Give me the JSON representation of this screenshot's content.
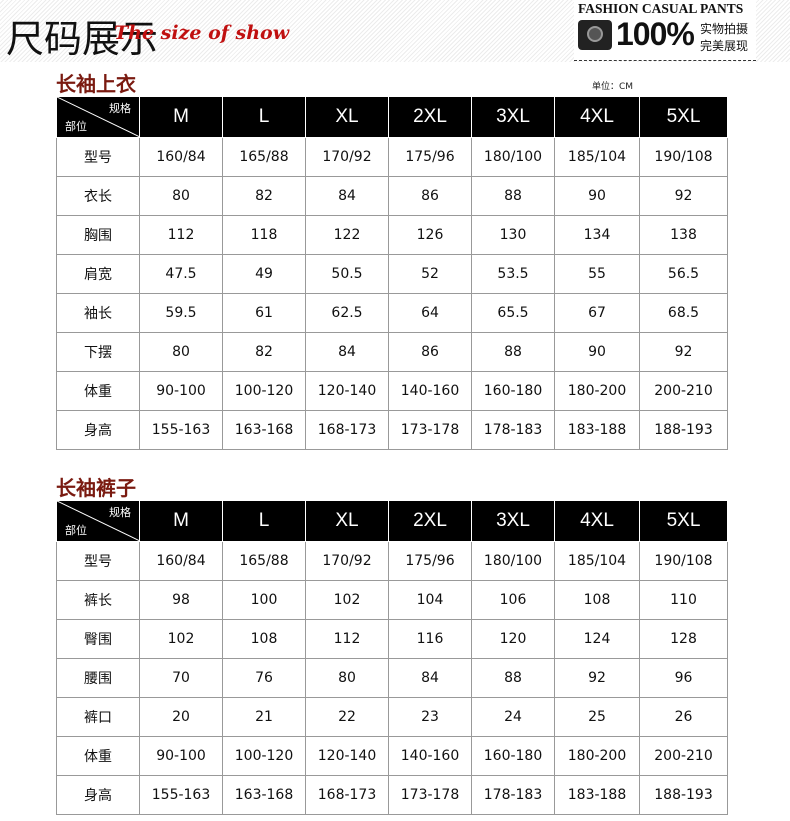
{
  "banner": {
    "title": "尺码展示",
    "subtitle": "The size of show",
    "badge_title": "FASHION CASUAL PANTS",
    "badge_percent": "100%",
    "badge_line1": "实物拍摄",
    "badge_line2": "完美展现"
  },
  "unit": "单位：CM",
  "corner": {
    "top": "规格",
    "bottom": "部位"
  },
  "sizes": [
    "M",
    "L",
    "XL",
    "2XL",
    "3XL",
    "4XL",
    "5XL"
  ],
  "tops": {
    "title": "长袖上衣",
    "rows": [
      {
        "label": "型号",
        "values": [
          "160/84",
          "165/88",
          "170/92",
          "175/96",
          "180/100",
          "185/104",
          "190/108"
        ]
      },
      {
        "label": "衣长",
        "values": [
          "80",
          "82",
          "84",
          "86",
          "88",
          "90",
          "92"
        ]
      },
      {
        "label": "胸围",
        "values": [
          "112",
          "118",
          "122",
          "126",
          "130",
          "134",
          "138"
        ]
      },
      {
        "label": "肩宽",
        "values": [
          "47.5",
          "49",
          "50.5",
          "52",
          "53.5",
          "55",
          "56.5"
        ]
      },
      {
        "label": "袖长",
        "values": [
          "59.5",
          "61",
          "62.5",
          "64",
          "65.5",
          "67",
          "68.5"
        ]
      },
      {
        "label": "下摆",
        "values": [
          "80",
          "82",
          "84",
          "86",
          "88",
          "90",
          "92"
        ]
      },
      {
        "label": "体重",
        "values": [
          "90-100",
          "100-120",
          "120-140",
          "140-160",
          "160-180",
          "180-200",
          "200-210"
        ]
      },
      {
        "label": "身高",
        "values": [
          "155-163",
          "163-168",
          "168-173",
          "173-178",
          "178-183",
          "183-188",
          "188-193"
        ]
      }
    ]
  },
  "pants": {
    "title": "长袖裤子",
    "rows": [
      {
        "label": "型号",
        "values": [
          "160/84",
          "165/88",
          "170/92",
          "175/96",
          "180/100",
          "185/104",
          "190/108"
        ]
      },
      {
        "label": "裤长",
        "values": [
          "98",
          "100",
          "102",
          "104",
          "106",
          "108",
          "110"
        ]
      },
      {
        "label": "臀围",
        "values": [
          "102",
          "108",
          "112",
          "116",
          "120",
          "124",
          "128"
        ]
      },
      {
        "label": "腰围",
        "values": [
          "70",
          "76",
          "80",
          "84",
          "88",
          "92",
          "96"
        ]
      },
      {
        "label": "裤口",
        "values": [
          "20",
          "21",
          "22",
          "23",
          "24",
          "25",
          "26"
        ]
      },
      {
        "label": "体重",
        "values": [
          "90-100",
          "100-120",
          "120-140",
          "140-160",
          "160-180",
          "180-200",
          "200-210"
        ]
      },
      {
        "label": "身高",
        "values": [
          "155-163",
          "163-168",
          "168-173",
          "173-178",
          "178-183",
          "183-188",
          "188-193"
        ]
      }
    ]
  }
}
